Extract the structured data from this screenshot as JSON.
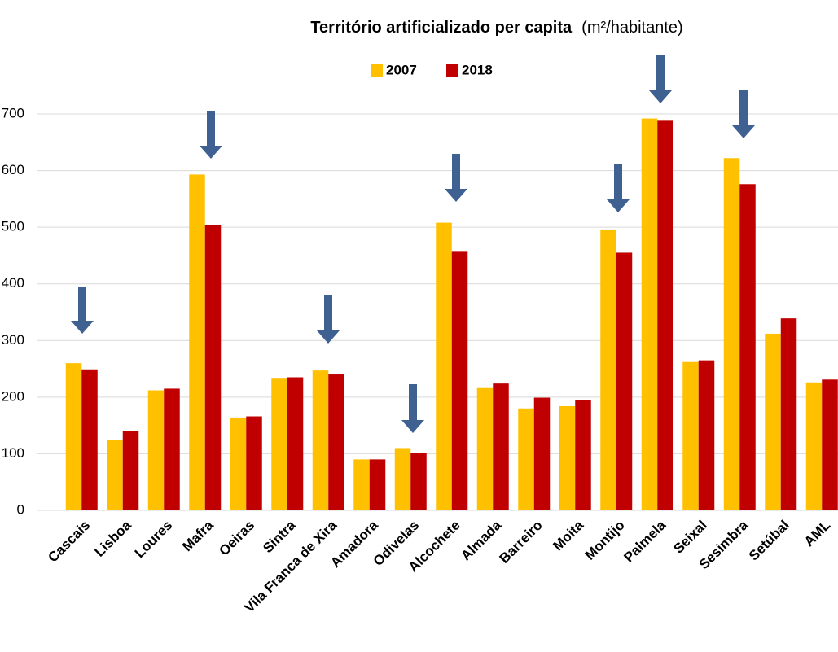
{
  "chart_data": {
    "type": "bar",
    "title": "Território artificializado per capita",
    "subtitle": "(m²/habitante)",
    "categories": [
      "Cascais",
      "Lisboa",
      "Loures",
      "Mafra",
      "Oeiras",
      "Sintra",
      "Vila Franca de Xira",
      "Amadora",
      "Odivelas",
      "Alcochete",
      "Almada",
      "Barreiro",
      "Moita",
      "Montijo",
      "Palmela",
      "Seixal",
      "Sesimbra",
      "Setúbal",
      "AML"
    ],
    "series": [
      {
        "name": "2007",
        "color": "#FFC000",
        "values": [
          260,
          125,
          212,
          593,
          164,
          234,
          247,
          90,
          110,
          508,
          216,
          180,
          184,
          496,
          692,
          262,
          622,
          312,
          226
        ]
      },
      {
        "name": "2018",
        "color": "#C00000",
        "values": [
          249,
          140,
          215,
          504,
          166,
          235,
          240,
          90,
          102,
          458,
          224,
          199,
          195,
          455,
          688,
          265,
          576,
          339,
          231
        ]
      }
    ],
    "ylim": [
      0,
      700
    ],
    "yticks": [
      0,
      100,
      200,
      300,
      400,
      500,
      600,
      700
    ],
    "grid": true
  }
}
